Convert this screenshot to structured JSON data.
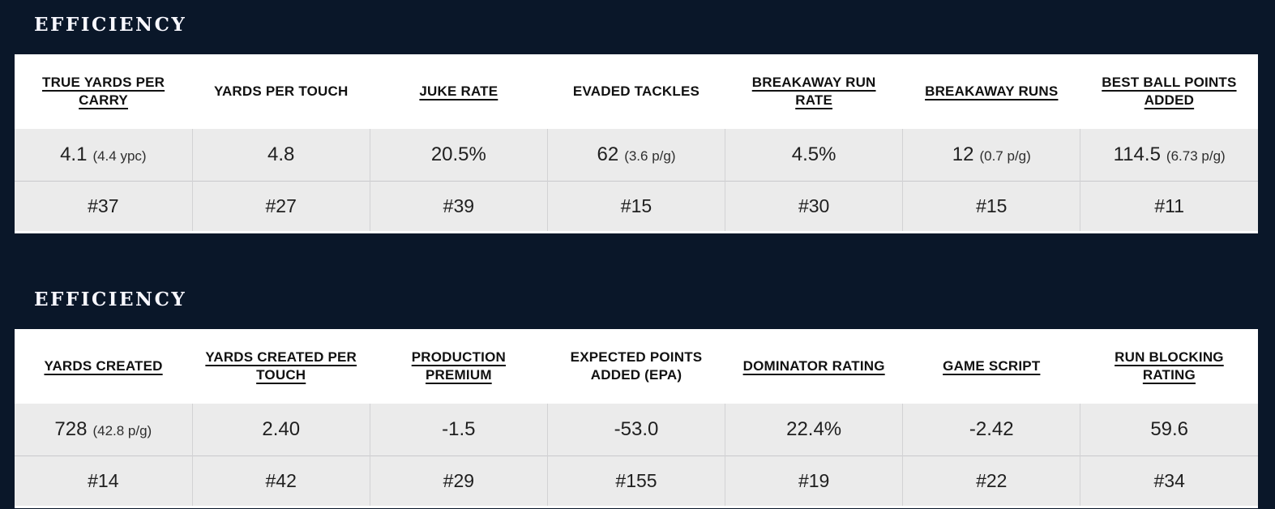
{
  "colors": {
    "page_background": "#0a1729",
    "table_header_bg": "#ffffff",
    "table_row_bg": "#ebebeb",
    "title_text": "#f8f8ff",
    "cell_text": "#1f1f1f"
  },
  "sections": [
    {
      "title": "EFFICIENCY",
      "columns": [
        {
          "label": "TRUE YARDS PER CARRY",
          "linked": true,
          "value": "4.1",
          "note": "(4.4 ypc)",
          "rank": "#37"
        },
        {
          "label": "YARDS PER TOUCH",
          "linked": false,
          "value": "4.8",
          "note": "",
          "rank": "#27"
        },
        {
          "label": "JUKE RATE",
          "linked": true,
          "value": "20.5%",
          "note": "",
          "rank": "#39"
        },
        {
          "label": "EVADED TACKLES",
          "linked": false,
          "value": "62",
          "note": "(3.6 p/g)",
          "rank": "#15"
        },
        {
          "label": "BREAKAWAY RUN RATE",
          "linked": true,
          "value": "4.5%",
          "note": "",
          "rank": "#30"
        },
        {
          "label": "BREAKAWAY RUNS",
          "linked": true,
          "value": "12",
          "note": "(0.7 p/g)",
          "rank": "#15"
        },
        {
          "label": "BEST BALL POINTS ADDED",
          "linked": true,
          "value": "114.5",
          "note": "(6.73 p/g)",
          "rank": "#11"
        }
      ]
    },
    {
      "title": "EFFICIENCY",
      "columns": [
        {
          "label": "YARDS CREATED",
          "linked": true,
          "value": "728",
          "note": "(42.8 p/g)",
          "rank": "#14"
        },
        {
          "label": "YARDS CREATED PER TOUCH",
          "linked": true,
          "value": "2.40",
          "note": "",
          "rank": "#42"
        },
        {
          "label": "PRODUCTION PREMIUM",
          "linked": true,
          "value": "-1.5",
          "note": "",
          "rank": "#29"
        },
        {
          "label": "EXPECTED POINTS ADDED (EPA)",
          "linked": false,
          "value": "-53.0",
          "note": "",
          "rank": "#155"
        },
        {
          "label": "DOMINATOR RATING",
          "linked": true,
          "value": "22.4%",
          "note": "",
          "rank": "#19"
        },
        {
          "label": "GAME SCRIPT",
          "linked": true,
          "value": "-2.42",
          "note": "",
          "rank": "#22"
        },
        {
          "label": "RUN BLOCKING RATING",
          "linked": true,
          "value": "59.6",
          "note": "",
          "rank": "#34"
        }
      ]
    }
  ]
}
